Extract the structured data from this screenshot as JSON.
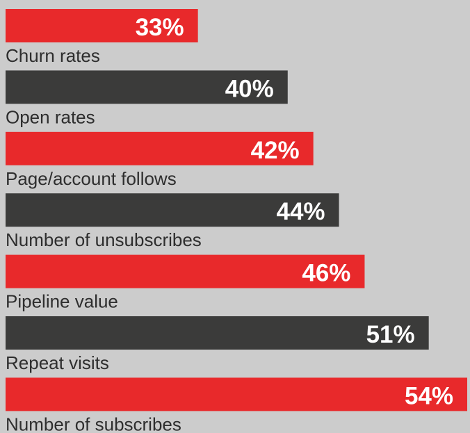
{
  "chart_data": {
    "type": "bar",
    "orientation": "horizontal",
    "categories": [
      "Churn rates",
      "Open rates",
      "Page/account follows",
      "Number of unsubscribes",
      "Pipeline value",
      "Repeat visits",
      "Number of subscribes"
    ],
    "values": [
      33,
      40,
      42,
      44,
      46,
      51,
      54
    ],
    "value_labels": [
      "33%",
      "40%",
      "42%",
      "44%",
      "46%",
      "51%",
      "54%"
    ],
    "colors": [
      "#e8292b",
      "#3b3b3a",
      "#e8292b",
      "#3b3b3a",
      "#e8292b",
      "#3b3b3a",
      "#e8292b"
    ],
    "xlim": [
      18,
      54
    ]
  }
}
